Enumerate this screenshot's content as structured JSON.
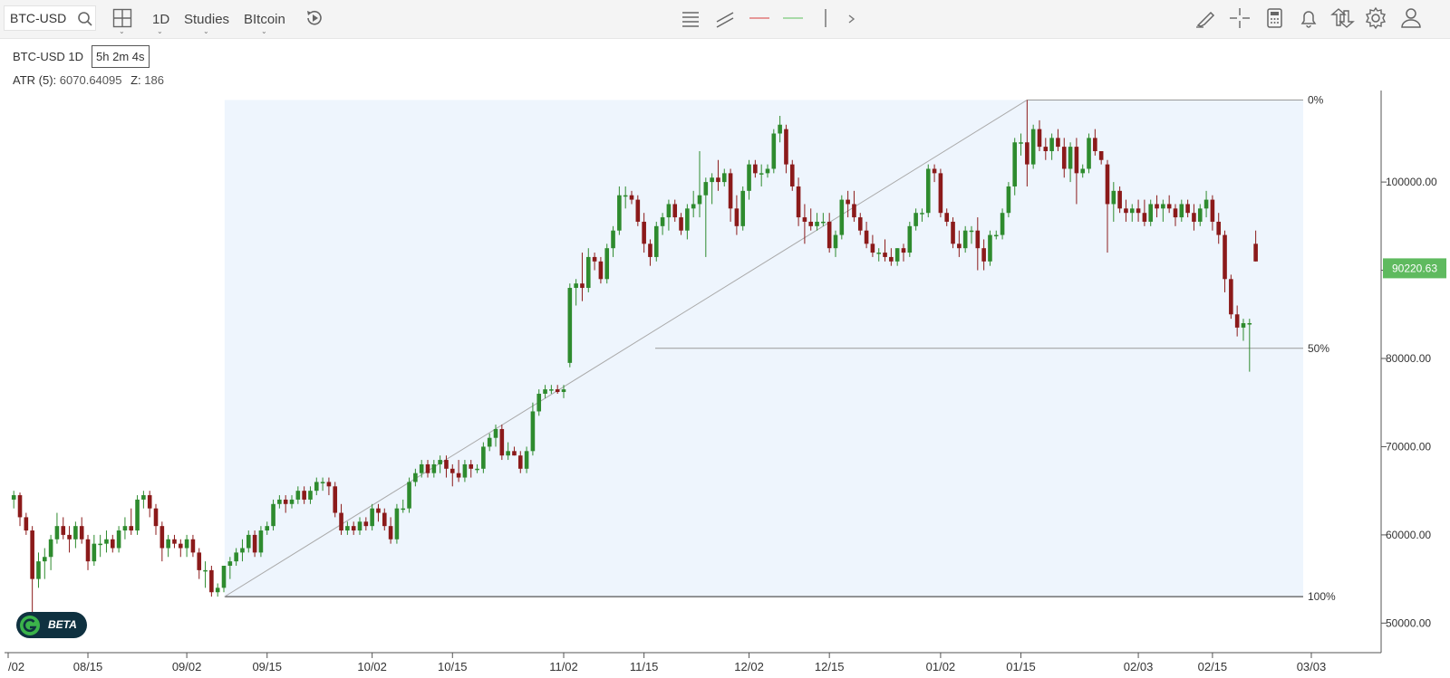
{
  "toolbar": {
    "symbol": "BTC-USD",
    "interval": "1D",
    "studies": "Studies",
    "comparison": "BItcoin",
    "icons": [
      "search-icon",
      "layout-grid-icon",
      "replay-icon",
      "horizontal-lines-icon",
      "trendline-icon",
      "red-line-icon",
      "green-line-icon",
      "vertical-line-icon",
      "chevron-right-icon",
      "draw-tool-icon",
      "crosshair-icon",
      "calculator-icon",
      "bell-icon",
      "arrows-updown-icon",
      "gear-icon",
      "user-icon"
    ]
  },
  "legend": {
    "symbol_interval": "BTC-USD 1D",
    "countdown": "5h 2m 4s",
    "atr_label": "ATR (5):",
    "atr_value": "6070.64095",
    "z_label": "Z:",
    "z_value": "186"
  },
  "badge": {
    "label": "BETA"
  },
  "colors": {
    "up": "#2e8b2e",
    "down": "#8b1a1a",
    "price_tag": "#5fba5f",
    "fib_fill": "#eef5fd"
  },
  "chart_data": {
    "type": "candlestick",
    "y_ticks": [
      "100000.00",
      "90000.00",
      "80000.00",
      "70000.00",
      "60000.00",
      "50000.00"
    ],
    "y_tick_values": [
      100000,
      90000,
      80000,
      70000,
      60000,
      50000
    ],
    "x_ticks": [
      "/02",
      "08/15",
      "09/02",
      "09/15",
      "10/02",
      "10/15",
      "11/02",
      "11/15",
      "12/02",
      "12/15",
      "01/02",
      "01/15",
      "02/03",
      "02/15",
      "03/03"
    ],
    "x_tick_index": [
      0,
      12,
      28,
      41,
      58,
      71,
      89,
      102,
      119,
      132,
      150,
      163,
      182,
      194,
      210
    ],
    "current_price": "90220.63",
    "current_price_value": 90220.63,
    "fib": {
      "low": 53000,
      "high": 109300,
      "start_index": 35,
      "end_index": 164,
      "levels": [
        "0%",
        "50%",
        "100%"
      ],
      "level_values": [
        109300,
        81150,
        53000
      ]
    },
    "candles": [
      [
        0,
        64000,
        65000,
        63000,
        64500
      ],
      [
        1,
        64500,
        64800,
        61000,
        62000
      ],
      [
        2,
        62000,
        62500,
        60000,
        60500
      ],
      [
        3,
        60500,
        61000,
        49000,
        55000
      ],
      [
        4,
        55000,
        58000,
        54000,
        57000
      ],
      [
        5,
        57000,
        58500,
        55000,
        57500
      ],
      [
        6,
        57500,
        60000,
        56000,
        59500
      ],
      [
        7,
        59500,
        62500,
        59000,
        61000
      ],
      [
        8,
        61000,
        62000,
        59500,
        60000
      ],
      [
        9,
        60000,
        61000,
        58000,
        59500
      ],
      [
        10,
        59500,
        61500,
        58500,
        61000
      ],
      [
        11,
        61000,
        62000,
        59000,
        59500
      ],
      [
        12,
        59500,
        60000,
        56000,
        57000
      ],
      [
        13,
        57000,
        60000,
        56500,
        59000
      ],
      [
        14,
        59000,
        60000,
        57500,
        59000
      ],
      [
        15,
        59000,
        60500,
        58000,
        59500
      ],
      [
        16,
        59500,
        60000,
        58000,
        58500
      ],
      [
        17,
        58500,
        61000,
        58000,
        60500
      ],
      [
        18,
        60500,
        62000,
        59500,
        61000
      ],
      [
        19,
        61000,
        63000,
        60000,
        60500
      ],
      [
        20,
        60500,
        64500,
        60000,
        64000
      ],
      [
        21,
        64000,
        65000,
        63000,
        64500
      ],
      [
        22,
        64500,
        65000,
        62000,
        63000
      ],
      [
        23,
        63000,
        63500,
        60000,
        61000
      ],
      [
        24,
        61000,
        61500,
        57000,
        58500
      ],
      [
        25,
        58500,
        60000,
        57500,
        59500
      ],
      [
        26,
        59500,
        60000,
        58500,
        59000
      ],
      [
        27,
        59000,
        59500,
        57500,
        58500
      ],
      [
        28,
        58500,
        60000,
        57500,
        59500
      ],
      [
        29,
        59500,
        60000,
        57500,
        58000
      ],
      [
        30,
        58000,
        58500,
        55000,
        56000
      ],
      [
        31,
        56000,
        57000,
        54000,
        56000
      ],
      [
        32,
        56000,
        56500,
        53000,
        53500
      ],
      [
        33,
        53500,
        54500,
        53000,
        54000
      ],
      [
        34,
        54000,
        56500,
        53500,
        56500
      ],
      [
        35,
        56500,
        57500,
        55000,
        57000
      ],
      [
        36,
        57000,
        58500,
        56500,
        58000
      ],
      [
        37,
        58000,
        59500,
        57000,
        58500
      ],
      [
        38,
        58500,
        60500,
        58000,
        60000
      ],
      [
        39,
        60000,
        60500,
        57500,
        58000
      ],
      [
        40,
        58000,
        61000,
        57500,
        60500
      ],
      [
        41,
        60500,
        61500,
        60000,
        61000
      ],
      [
        42,
        61000,
        64000,
        60500,
        63500
      ],
      [
        43,
        63500,
        64500,
        63000,
        64000
      ],
      [
        44,
        64000,
        64500,
        62500,
        63500
      ],
      [
        45,
        63500,
        64500,
        63000,
        64000
      ],
      [
        46,
        64000,
        65500,
        63500,
        65000
      ],
      [
        47,
        65000,
        65500,
        63500,
        64000
      ],
      [
        48,
        64000,
        65500,
        63500,
        65000
      ],
      [
        49,
        65000,
        66500,
        64500,
        66000
      ],
      [
        50,
        66000,
        66500,
        65000,
        66000
      ],
      [
        51,
        66000,
        66500,
        64500,
        65500
      ],
      [
        52,
        65500,
        66000,
        62000,
        62500
      ],
      [
        53,
        62500,
        63500,
        60000,
        60500
      ],
      [
        54,
        60500,
        61500,
        60000,
        61000
      ],
      [
        55,
        61000,
        61500,
        60000,
        60500
      ],
      [
        56,
        60500,
        62000,
        60000,
        61500
      ],
      [
        57,
        61500,
        62000,
        60500,
        61000
      ],
      [
        58,
        61000,
        63500,
        60500,
        63000
      ],
      [
        59,
        63000,
        63500,
        61500,
        62500
      ],
      [
        60,
        62500,
        63000,
        60500,
        61000
      ],
      [
        61,
        61000,
        62000,
        59000,
        59500
      ],
      [
        62,
        59500,
        63500,
        59000,
        63000
      ],
      [
        63,
        63000,
        64000,
        62500,
        63000
      ],
      [
        64,
        63000,
        66500,
        62500,
        66000
      ],
      [
        65,
        66000,
        67500,
        65500,
        67000
      ],
      [
        66,
        67000,
        68500,
        66500,
        68000
      ],
      [
        67,
        68000,
        68500,
        66500,
        67000
      ],
      [
        68,
        67000,
        68500,
        66500,
        68000
      ],
      [
        69,
        68000,
        69000,
        67000,
        68500
      ],
      [
        70,
        68500,
        69000,
        66500,
        67500
      ],
      [
        71,
        67500,
        68000,
        65500,
        67000
      ],
      [
        72,
        67000,
        68500,
        66000,
        66500
      ],
      [
        73,
        66500,
        68500,
        66000,
        68000
      ],
      [
        74,
        68000,
        68500,
        66500,
        67500
      ],
      [
        75,
        67500,
        68000,
        67000,
        67500
      ],
      [
        76,
        67500,
        70500,
        67000,
        70000
      ],
      [
        77,
        70000,
        71500,
        69500,
        71000
      ],
      [
        78,
        71000,
        72500,
        70000,
        72000
      ],
      [
        79,
        72000,
        72500,
        68500,
        69000
      ],
      [
        80,
        69000,
        70500,
        68500,
        69500
      ],
      [
        81,
        69500,
        70000,
        69000,
        69000
      ],
      [
        82,
        69000,
        69500,
        67000,
        67500
      ],
      [
        83,
        67500,
        70000,
        67000,
        69500
      ],
      [
        84,
        69500,
        75000,
        69000,
        74000
      ],
      [
        85,
        74000,
        76500,
        73500,
        76000
      ],
      [
        86,
        76000,
        77000,
        75500,
        76500
      ],
      [
        87,
        76500,
        77000,
        76000,
        76500
      ],
      [
        88,
        76500,
        77000,
        76000,
        76200
      ],
      [
        89,
        76200,
        77000,
        75500,
        76500
      ],
      [
        90,
        79500,
        88500,
        79000,
        88000
      ],
      [
        91,
        88000,
        89000,
        86000,
        88500
      ],
      [
        92,
        88500,
        92000,
        86500,
        88000
      ],
      [
        93,
        88000,
        92500,
        87500,
        91500
      ],
      [
        94,
        91500,
        92000,
        90000,
        91000
      ],
      [
        95,
        91000,
        91500,
        88500,
        89000
      ],
      [
        96,
        89000,
        93000,
        88500,
        92500
      ],
      [
        97,
        92500,
        95000,
        91500,
        94500
      ],
      [
        98,
        94500,
        99500,
        94000,
        98500
      ],
      [
        99,
        98500,
        99500,
        97000,
        98500
      ],
      [
        100,
        98500,
        99000,
        97500,
        98000
      ],
      [
        101,
        98000,
        98500,
        95000,
        95500
      ],
      [
        102,
        95500,
        96500,
        92000,
        93000
      ],
      [
        103,
        93000,
        93500,
        90500,
        91500
      ],
      [
        104,
        91500,
        95500,
        91000,
        95000
      ],
      [
        105,
        95000,
        96500,
        94000,
        96000
      ],
      [
        106,
        96000,
        98000,
        94500,
        97500
      ],
      [
        107,
        97500,
        98000,
        95500,
        96000
      ],
      [
        108,
        96000,
        96500,
        94000,
        94500
      ],
      [
        109,
        94500,
        97500,
        93500,
        97000
      ],
      [
        110,
        97000,
        99000,
        96000,
        97500
      ],
      [
        111,
        97500,
        103500,
        96000,
        98500
      ],
      [
        112,
        98500,
        100500,
        91500,
        100000
      ],
      [
        113,
        100000,
        101000,
        97500,
        100500
      ],
      [
        114,
        100500,
        102500,
        99000,
        100000
      ],
      [
        115,
        100000,
        101500,
        99500,
        101000
      ],
      [
        116,
        101000,
        101500,
        95500,
        97000
      ],
      [
        117,
        97000,
        98500,
        94000,
        95000
      ],
      [
        118,
        95000,
        99500,
        94500,
        99000
      ],
      [
        119,
        99000,
        102500,
        98000,
        102000
      ],
      [
        120,
        102000,
        102500,
        100500,
        101000
      ],
      [
        121,
        101000,
        102000,
        99500,
        101000
      ],
      [
        122,
        101000,
        102000,
        100500,
        101500
      ],
      [
        123,
        101500,
        106000,
        101000,
        105500
      ],
      [
        124,
        105500,
        107500,
        104500,
        106500
      ],
      [
        125,
        106000,
        106500,
        101000,
        102000
      ],
      [
        126,
        102000,
        102500,
        99000,
        99500
      ],
      [
        127,
        99500,
        100500,
        95000,
        96000
      ],
      [
        128,
        96000,
        97500,
        93000,
        95500
      ],
      [
        129,
        95500,
        97000,
        94500,
        95000
      ],
      [
        130,
        95000,
        96500,
        94500,
        95500
      ],
      [
        131,
        95500,
        96500,
        95000,
        95500
      ],
      [
        132,
        95500,
        96500,
        92000,
        92500
      ],
      [
        133,
        92500,
        94500,
        91500,
        94000
      ],
      [
        134,
        94000,
        98500,
        93500,
        98000
      ],
      [
        135,
        98000,
        99000,
        96000,
        97500
      ],
      [
        136,
        97500,
        99000,
        95500,
        96000
      ],
      [
        137,
        96000,
        96500,
        94000,
        94500
      ],
      [
        138,
        94500,
        95500,
        92500,
        93000
      ],
      [
        139,
        93000,
        94000,
        91500,
        92000
      ],
      [
        140,
        92000,
        92500,
        91000,
        92000
      ],
      [
        141,
        92000,
        93500,
        91000,
        91500
      ],
      [
        142,
        91500,
        92500,
        90500,
        91000
      ],
      [
        143,
        91000,
        92500,
        90500,
        92500
      ],
      [
        144,
        92500,
        93000,
        91000,
        92000
      ],
      [
        145,
        92000,
        95500,
        91500,
        95000
      ],
      [
        146,
        95000,
        97000,
        94500,
        96500
      ],
      [
        147,
        96500,
        97000,
        95500,
        96500
      ],
      [
        148,
        96500,
        102000,
        96000,
        101500
      ],
      [
        149,
        101500,
        102000,
        100000,
        101000
      ],
      [
        150,
        101000,
        101500,
        96000,
        96500
      ],
      [
        151,
        96500,
        97000,
        95000,
        95500
      ],
      [
        152,
        95500,
        96000,
        92500,
        93000
      ],
      [
        153,
        93000,
        94500,
        91500,
        92500
      ],
      [
        154,
        92500,
        95000,
        92000,
        94500
      ],
      [
        155,
        94500,
        95000,
        93000,
        94500
      ],
      [
        156,
        94500,
        96000,
        90000,
        92500
      ],
      [
        157,
        92500,
        93500,
        90000,
        91000
      ],
      [
        158,
        91000,
        94500,
        90500,
        94000
      ],
      [
        159,
        94000,
        94500,
        93500,
        94000
      ],
      [
        160,
        94000,
        97000,
        93500,
        96500
      ],
      [
        161,
        96500,
        100000,
        96000,
        99500
      ],
      [
        162,
        99500,
        105000,
        98500,
        104500
      ],
      [
        163,
        104500,
        105500,
        103000,
        104500
      ],
      [
        164,
        104500,
        109300,
        99500,
        102000
      ],
      [
        165,
        102000,
        106500,
        101500,
        106000
      ],
      [
        166,
        106000,
        107000,
        103500,
        104000
      ],
      [
        167,
        104000,
        105000,
        102500,
        103500
      ],
      [
        168,
        103500,
        105500,
        102500,
        105000
      ],
      [
        169,
        105000,
        106000,
        103500,
        104000
      ],
      [
        170,
        104000,
        105000,
        100500,
        101500
      ],
      [
        171,
        101500,
        104500,
        100000,
        104000
      ],
      [
        172,
        104000,
        105000,
        97500,
        101000
      ],
      [
        173,
        101000,
        102000,
        100500,
        101500
      ],
      [
        174,
        101500,
        105500,
        101000,
        105000
      ],
      [
        175,
        105000,
        106000,
        103000,
        103500
      ],
      [
        176,
        103500,
        103500,
        102000,
        102500
      ],
      [
        177,
        102000,
        102500,
        92000,
        97500
      ],
      [
        178,
        97500,
        100000,
        95500,
        99000
      ],
      [
        179,
        99000,
        99500,
        96500,
        97000
      ],
      [
        180,
        97000,
        98000,
        95500,
        96500
      ],
      [
        181,
        96500,
        97500,
        95500,
        97000
      ],
      [
        182,
        97000,
        98000,
        95500,
        96500
      ],
      [
        183,
        96500,
        98000,
        95000,
        95500
      ],
      [
        184,
        95500,
        98000,
        95000,
        97500
      ],
      [
        185,
        97500,
        98500,
        96000,
        97000
      ],
      [
        186,
        97000,
        98000,
        95500,
        97500
      ],
      [
        187,
        97500,
        98500,
        96500,
        97000
      ],
      [
        188,
        97000,
        97500,
        95000,
        96000
      ],
      [
        189,
        96000,
        98000,
        95500,
        97500
      ],
      [
        190,
        97500,
        98000,
        96000,
        96500
      ],
      [
        191,
        96500,
        97500,
        94500,
        95500
      ],
      [
        192,
        95500,
        97500,
        95000,
        97000
      ],
      [
        193,
        97000,
        99000,
        96000,
        98000
      ],
      [
        194,
        98000,
        98500,
        94500,
        95500
      ],
      [
        195,
        95500,
        96500,
        93000,
        94000
      ],
      [
        196,
        94000,
        94500,
        87500,
        89000
      ],
      [
        197,
        89000,
        89500,
        84500,
        85000
      ],
      [
        198,
        85000,
        86000,
        82500,
        83500
      ],
      [
        199,
        83500,
        84500,
        82000,
        84000
      ],
      [
        200,
        84000,
        84500,
        78500,
        84000
      ],
      [
        201,
        93000,
        94500,
        91000,
        91000
      ]
    ]
  }
}
